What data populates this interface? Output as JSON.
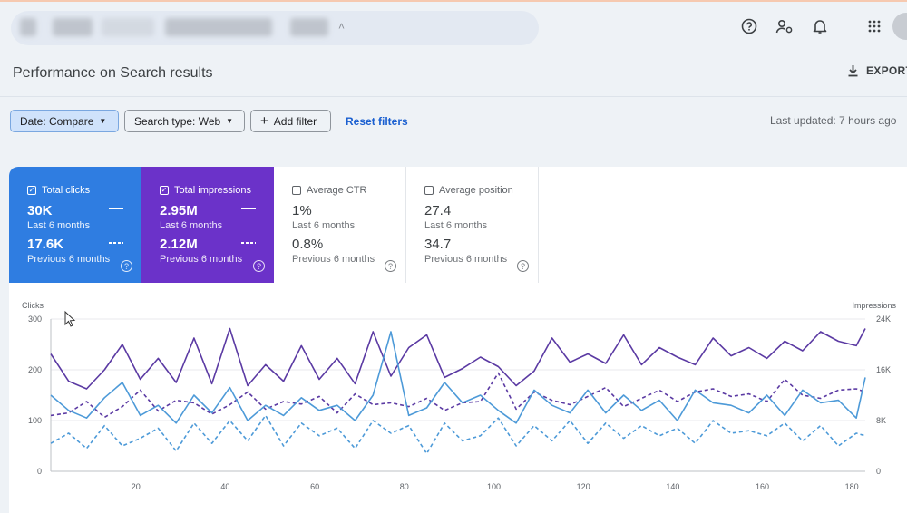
{
  "header": {
    "icons": [
      "help-icon",
      "manage-users-icon",
      "bell-icon",
      "apps-grid-icon",
      "avatar"
    ]
  },
  "page": {
    "title": "Performance on Search results",
    "export_label": "EXPORT"
  },
  "filters": {
    "date": "Date: Compare",
    "search_type": "Search type: Web",
    "add_filter": "Add filter",
    "reset": "Reset filters",
    "last_updated": "Last updated: 7 hours ago"
  },
  "metrics": [
    {
      "label": "Total clicks",
      "checked": true,
      "current": "30K",
      "current_period": "Last 6 months",
      "previous": "17.6K",
      "previous_period": "Previous 6 months",
      "color": "#2f7de1"
    },
    {
      "label": "Total impressions",
      "checked": true,
      "current": "2.95M",
      "current_period": "Last 6 months",
      "previous": "2.12M",
      "previous_period": "Previous 6 months",
      "color": "#6b32c9"
    },
    {
      "label": "Average CTR",
      "checked": false,
      "current": "1%",
      "current_period": "Last 6 months",
      "previous": "0.8%",
      "previous_period": "Previous 6 months"
    },
    {
      "label": "Average position",
      "checked": false,
      "current": "27.4",
      "current_period": "Last 6 months",
      "previous": "34.7",
      "previous_period": "Previous 6 months"
    }
  ],
  "chart_data": {
    "type": "line",
    "ylabel": "Clicks",
    "y2label": "Impressions",
    "ylim": [
      0,
      300
    ],
    "y2lim": [
      0,
      24000
    ],
    "yticks": [
      "0",
      "100",
      "200",
      "300"
    ],
    "y2ticks": [
      "0",
      "8K",
      "16K",
      "24K"
    ],
    "xticks": [
      20,
      40,
      60,
      80,
      100,
      120,
      140,
      160,
      180
    ],
    "xlim": [
      1,
      183
    ],
    "grid": true,
    "series": [
      {
        "name": "Total impressions",
        "axis": "right",
        "style": "solid",
        "color": "#5b3aa3",
        "x": [
          1,
          5,
          9,
          13,
          17,
          21,
          25,
          29,
          33,
          37,
          41,
          45,
          49,
          53,
          57,
          61,
          65,
          69,
          73,
          77,
          81,
          85,
          89,
          93,
          97,
          101,
          105,
          109,
          113,
          117,
          121,
          125,
          129,
          133,
          137,
          141,
          145,
          149,
          153,
          157,
          161,
          165,
          169,
          173,
          177,
          181,
          183
        ],
        "values": [
          18500,
          14200,
          13000,
          16000,
          20000,
          14500,
          17800,
          14000,
          21000,
          13800,
          22500,
          13500,
          16800,
          14200,
          19800,
          14500,
          17800,
          13800,
          22000,
          15000,
          19500,
          21500,
          14800,
          16200,
          18000,
          16500,
          13500,
          15800,
          21000,
          17200,
          18500,
          17000,
          21500,
          16800,
          19500,
          18000,
          16800,
          21000,
          18200,
          19500,
          17800,
          20500,
          19000,
          22000,
          20500,
          19800,
          22500
        ]
      },
      {
        "name": "Total impressions (previous)",
        "axis": "right",
        "style": "dashed",
        "color": "#5b3aa3",
        "x": [
          1,
          5,
          9,
          13,
          17,
          21,
          25,
          29,
          33,
          37,
          41,
          45,
          49,
          53,
          57,
          61,
          65,
          69,
          73,
          77,
          81,
          85,
          89,
          93,
          97,
          101,
          105,
          109,
          113,
          117,
          121,
          125,
          129,
          133,
          137,
          141,
          145,
          149,
          153,
          157,
          161,
          165,
          169,
          173,
          177,
          181,
          183
        ],
        "values": [
          8800,
          9200,
          11000,
          8500,
          10200,
          12800,
          9500,
          11200,
          10800,
          9000,
          10500,
          12500,
          9800,
          11000,
          10600,
          11800,
          9200,
          12200,
          10500,
          10800,
          10200,
          11500,
          9600,
          10800,
          11000,
          15500,
          9800,
          12500,
          11200,
          10500,
          11800,
          13200,
          10200,
          11500,
          12800,
          11000,
          12500,
          13000,
          11800,
          12200,
          11000,
          14500,
          12000,
          11500,
          12800,
          13000,
          12500
        ]
      },
      {
        "name": "Total clicks",
        "axis": "left",
        "style": "solid",
        "color": "#4d9ad8",
        "x": [
          1,
          5,
          9,
          13,
          17,
          21,
          25,
          29,
          33,
          37,
          41,
          45,
          49,
          53,
          57,
          61,
          65,
          69,
          73,
          77,
          81,
          85,
          89,
          93,
          97,
          101,
          105,
          109,
          113,
          117,
          121,
          125,
          129,
          133,
          137,
          141,
          145,
          149,
          153,
          157,
          161,
          165,
          169,
          173,
          177,
          181,
          183
        ],
        "values": [
          150,
          120,
          105,
          145,
          175,
          110,
          130,
          95,
          150,
          115,
          165,
          100,
          130,
          110,
          145,
          120,
          130,
          100,
          150,
          275,
          110,
          125,
          175,
          135,
          150,
          120,
          95,
          160,
          130,
          115,
          160,
          115,
          150,
          120,
          140,
          100,
          160,
          135,
          130,
          115,
          150,
          110,
          160,
          135,
          140,
          105,
          185
        ]
      },
      {
        "name": "Total clicks (previous)",
        "axis": "left",
        "style": "dashed",
        "color": "#4d9ad8",
        "x": [
          1,
          5,
          9,
          13,
          17,
          21,
          25,
          29,
          33,
          37,
          41,
          45,
          49,
          53,
          57,
          61,
          65,
          69,
          73,
          77,
          81,
          85,
          89,
          93,
          97,
          101,
          105,
          109,
          113,
          117,
          121,
          125,
          129,
          133,
          137,
          141,
          145,
          149,
          153,
          157,
          161,
          165,
          169,
          173,
          177,
          181,
          183
        ],
        "values": [
          55,
          75,
          45,
          90,
          50,
          65,
          85,
          40,
          95,
          55,
          100,
          60,
          110,
          50,
          95,
          70,
          85,
          45,
          100,
          75,
          90,
          35,
          95,
          60,
          70,
          105,
          50,
          90,
          60,
          100,
          55,
          95,
          65,
          90,
          70,
          85,
          55,
          100,
          75,
          80,
          70,
          95,
          60,
          90,
          50,
          75,
          70
        ]
      }
    ]
  }
}
